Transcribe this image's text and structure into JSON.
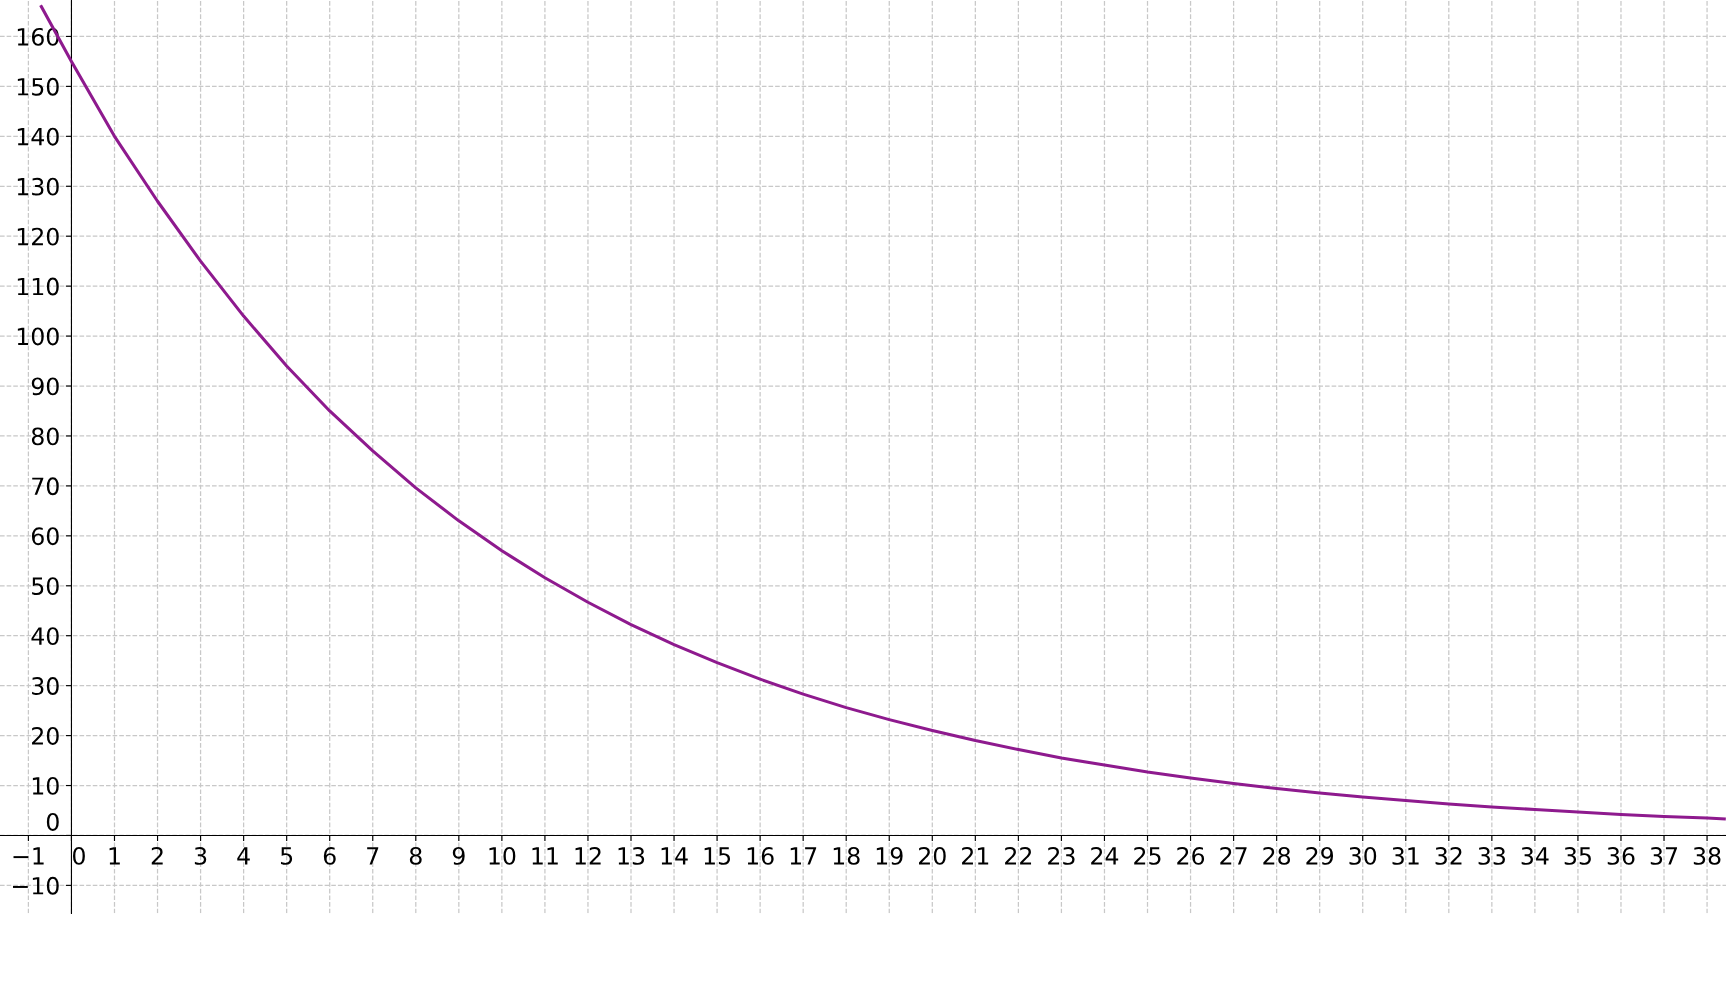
{
  "chart_data": {
    "type": "line",
    "x": [
      -0.7,
      0,
      1,
      2,
      3,
      4,
      5,
      6,
      7,
      8,
      9,
      10,
      11,
      12,
      13,
      14,
      15,
      16,
      17,
      18,
      19,
      20,
      21,
      22,
      23,
      24,
      25,
      26,
      27,
      28,
      29,
      30,
      31,
      32,
      33,
      34,
      35,
      36,
      37,
      38,
      38.4
    ],
    "series": [
      {
        "color": "#8e1a8e",
        "values": [
          166,
          155,
          140,
          127,
          115,
          104,
          94,
          85,
          77,
          69.6,
          63,
          57,
          51.6,
          46.7,
          42.2,
          38.2,
          34.6,
          31.3,
          28.3,
          25.6,
          23.2,
          21,
          19,
          17.2,
          15.5,
          14.1,
          12.7,
          11.5,
          10.4,
          9.4,
          8.5,
          7.7,
          7,
          6.3,
          5.7,
          5.2,
          4.7,
          4.2,
          3.8,
          3.5,
          3.3
        ]
      }
    ],
    "xlim": [
      -1.66,
      38.44
    ],
    "ylim": [
      -15.6,
      167.3
    ],
    "xticks": [
      {
        "value": -1,
        "label": "−1"
      },
      0,
      1,
      2,
      3,
      4,
      5,
      6,
      7,
      8,
      9,
      10,
      11,
      12,
      13,
      14,
      15,
      16,
      17,
      18,
      19,
      20,
      21,
      22,
      23,
      24,
      25,
      26,
      27,
      28,
      29,
      30,
      31,
      32,
      33,
      34,
      35,
      36,
      37,
      38
    ],
    "yticks": [
      {
        "value": -10,
        "label": "−10"
      },
      0,
      10,
      20,
      30,
      40,
      50,
      60,
      70,
      80,
      90,
      100,
      110,
      120,
      130,
      140,
      150,
      160
    ],
    "grid": true,
    "marker": "none",
    "line_style": "solid"
  }
}
